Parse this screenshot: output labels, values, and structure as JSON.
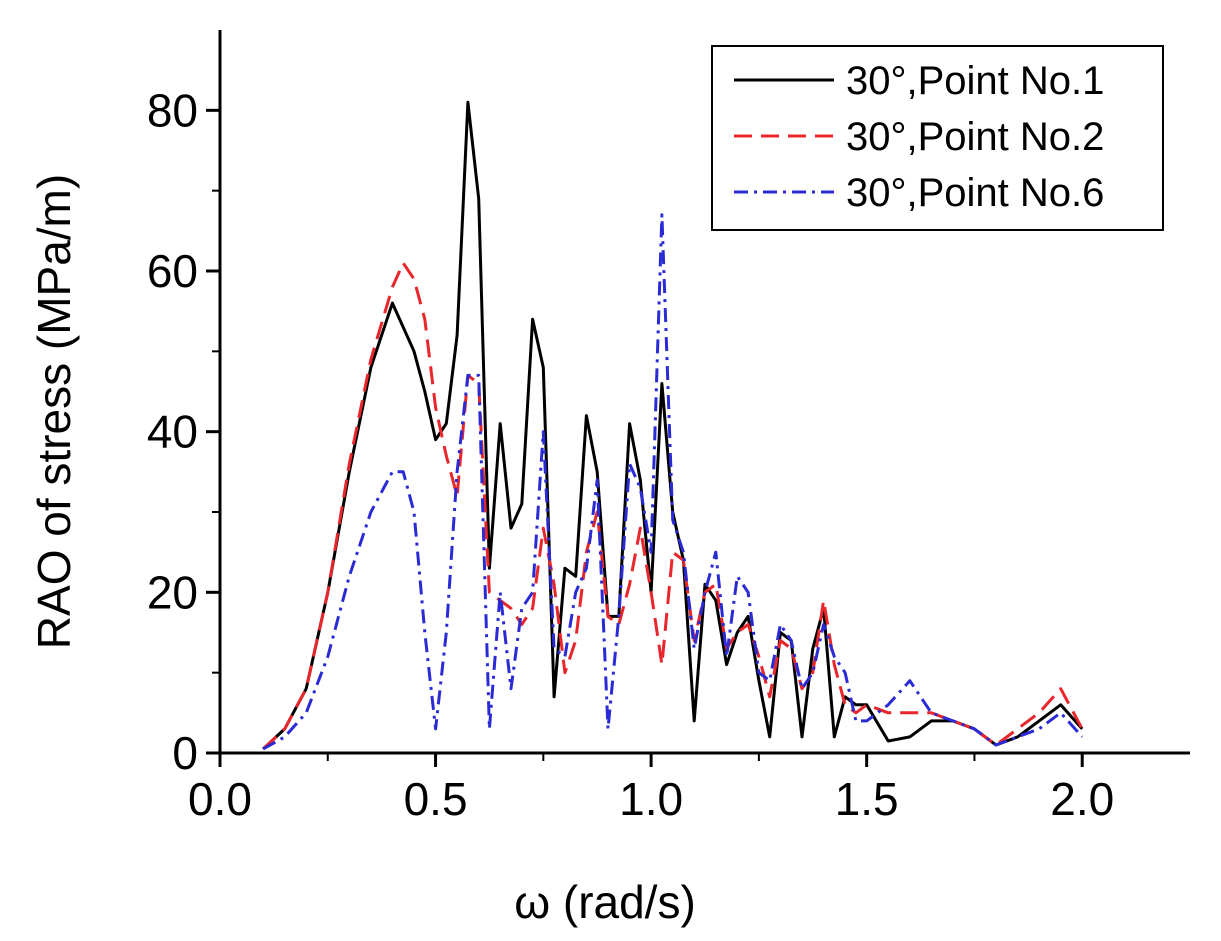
{
  "chart_data": {
    "type": "line",
    "title": "",
    "xlabel": "ω (rad/s)",
    "ylabel": "RAO of stress (MPa/m)",
    "xlim": [
      0.0,
      2.25
    ],
    "ylim": [
      0,
      90
    ],
    "xticks": [
      "0.0",
      "0.5",
      "1.0",
      "1.5",
      "2.0"
    ],
    "yticks": [
      "0",
      "20",
      "40",
      "60",
      "80"
    ],
    "grid": false,
    "legend_position": "top-right",
    "series": [
      {
        "name": "30°,Point No.1",
        "color": "#000000",
        "dash": "solid",
        "points": [
          [
            0.1,
            0.5
          ],
          [
            0.15,
            3
          ],
          [
            0.2,
            8
          ],
          [
            0.25,
            20
          ],
          [
            0.3,
            35
          ],
          [
            0.35,
            48
          ],
          [
            0.4,
            56
          ],
          [
            0.45,
            50
          ],
          [
            0.475,
            45
          ],
          [
            0.5,
            39
          ],
          [
            0.525,
            41
          ],
          [
            0.55,
            52
          ],
          [
            0.575,
            81
          ],
          [
            0.6,
            69
          ],
          [
            0.625,
            23
          ],
          [
            0.65,
            41
          ],
          [
            0.675,
            28
          ],
          [
            0.7,
            31
          ],
          [
            0.725,
            54
          ],
          [
            0.75,
            48
          ],
          [
            0.775,
            7
          ],
          [
            0.8,
            23
          ],
          [
            0.825,
            22
          ],
          [
            0.85,
            42
          ],
          [
            0.875,
            35
          ],
          [
            0.9,
            17
          ],
          [
            0.925,
            17
          ],
          [
            0.95,
            41
          ],
          [
            0.975,
            34
          ],
          [
            1.0,
            20
          ],
          [
            1.025,
            46
          ],
          [
            1.05,
            30
          ],
          [
            1.075,
            24
          ],
          [
            1.1,
            4
          ],
          [
            1.125,
            21
          ],
          [
            1.15,
            19
          ],
          [
            1.175,
            11
          ],
          [
            1.2,
            15
          ],
          [
            1.225,
            17
          ],
          [
            1.25,
            9
          ],
          [
            1.275,
            2
          ],
          [
            1.3,
            15
          ],
          [
            1.325,
            14
          ],
          [
            1.35,
            2
          ],
          [
            1.375,
            13
          ],
          [
            1.4,
            18
          ],
          [
            1.425,
            2
          ],
          [
            1.45,
            7
          ],
          [
            1.475,
            6
          ],
          [
            1.5,
            6
          ],
          [
            1.55,
            1.5
          ],
          [
            1.6,
            2
          ],
          [
            1.65,
            4
          ],
          [
            1.7,
            4
          ],
          [
            1.75,
            3
          ],
          [
            1.8,
            1
          ],
          [
            1.85,
            2
          ],
          [
            1.9,
            4
          ],
          [
            1.95,
            6
          ],
          [
            2.0,
            3
          ]
        ]
      },
      {
        "name": "30°,Point No.2",
        "color": "#e8262b",
        "dash": "dashed",
        "points": [
          [
            0.1,
            0.5
          ],
          [
            0.15,
            3
          ],
          [
            0.2,
            8
          ],
          [
            0.25,
            20
          ],
          [
            0.3,
            36
          ],
          [
            0.35,
            49
          ],
          [
            0.4,
            58
          ],
          [
            0.425,
            61
          ],
          [
            0.45,
            59
          ],
          [
            0.475,
            54
          ],
          [
            0.5,
            43
          ],
          [
            0.525,
            37
          ],
          [
            0.55,
            32
          ],
          [
            0.575,
            47
          ],
          [
            0.6,
            46
          ],
          [
            0.625,
            20
          ],
          [
            0.65,
            19
          ],
          [
            0.675,
            18
          ],
          [
            0.7,
            16
          ],
          [
            0.725,
            18
          ],
          [
            0.75,
            28
          ],
          [
            0.775,
            21
          ],
          [
            0.8,
            10
          ],
          [
            0.825,
            14
          ],
          [
            0.85,
            25
          ],
          [
            0.875,
            30
          ],
          [
            0.9,
            17
          ],
          [
            0.925,
            16
          ],
          [
            0.95,
            21
          ],
          [
            0.975,
            28
          ],
          [
            1.0,
            20
          ],
          [
            1.025,
            11
          ],
          [
            1.05,
            25
          ],
          [
            1.075,
            24
          ],
          [
            1.1,
            14
          ],
          [
            1.125,
            20
          ],
          [
            1.15,
            21
          ],
          [
            1.175,
            13
          ],
          [
            1.2,
            15
          ],
          [
            1.225,
            16
          ],
          [
            1.25,
            12
          ],
          [
            1.275,
            7
          ],
          [
            1.3,
            14
          ],
          [
            1.325,
            13
          ],
          [
            1.35,
            8
          ],
          [
            1.375,
            10
          ],
          [
            1.4,
            19
          ],
          [
            1.425,
            11
          ],
          [
            1.45,
            6
          ],
          [
            1.475,
            5
          ],
          [
            1.5,
            6
          ],
          [
            1.55,
            5
          ],
          [
            1.6,
            5
          ],
          [
            1.65,
            5
          ],
          [
            1.7,
            4
          ],
          [
            1.75,
            3
          ],
          [
            1.8,
            1
          ],
          [
            1.85,
            3
          ],
          [
            1.9,
            5
          ],
          [
            1.95,
            8
          ],
          [
            2.0,
            3
          ]
        ]
      },
      {
        "name": "30°,Point No.6",
        "color": "#2b2bd6",
        "dash": "dashdot",
        "points": [
          [
            0.1,
            0.5
          ],
          [
            0.15,
            2
          ],
          [
            0.2,
            5
          ],
          [
            0.25,
            12
          ],
          [
            0.3,
            22
          ],
          [
            0.35,
            30
          ],
          [
            0.4,
            35
          ],
          [
            0.425,
            35
          ],
          [
            0.45,
            30
          ],
          [
            0.475,
            15
          ],
          [
            0.5,
            3
          ],
          [
            0.525,
            15
          ],
          [
            0.55,
            35
          ],
          [
            0.575,
            47
          ],
          [
            0.6,
            47
          ],
          [
            0.625,
            3
          ],
          [
            0.65,
            20
          ],
          [
            0.675,
            8
          ],
          [
            0.7,
            18
          ],
          [
            0.725,
            20
          ],
          [
            0.75,
            40
          ],
          [
            0.775,
            13
          ],
          [
            0.8,
            12
          ],
          [
            0.825,
            20
          ],
          [
            0.85,
            23
          ],
          [
            0.875,
            34
          ],
          [
            0.9,
            3
          ],
          [
            0.925,
            17
          ],
          [
            0.95,
            36
          ],
          [
            0.975,
            33
          ],
          [
            1.0,
            25
          ],
          [
            1.025,
            67
          ],
          [
            1.05,
            29
          ],
          [
            1.075,
            25
          ],
          [
            1.1,
            13
          ],
          [
            1.125,
            20
          ],
          [
            1.15,
            25
          ],
          [
            1.175,
            12
          ],
          [
            1.2,
            22
          ],
          [
            1.225,
            20
          ],
          [
            1.25,
            10
          ],
          [
            1.275,
            9
          ],
          [
            1.3,
            16
          ],
          [
            1.325,
            14
          ],
          [
            1.35,
            8
          ],
          [
            1.375,
            10
          ],
          [
            1.4,
            16
          ],
          [
            1.425,
            12
          ],
          [
            1.45,
            10
          ],
          [
            1.475,
            4
          ],
          [
            1.5,
            4
          ],
          [
            1.55,
            6
          ],
          [
            1.6,
            9
          ],
          [
            1.65,
            5
          ],
          [
            1.7,
            4
          ],
          [
            1.75,
            3
          ],
          [
            1.8,
            1
          ],
          [
            1.85,
            2
          ],
          [
            1.9,
            3
          ],
          [
            1.95,
            5
          ],
          [
            2.0,
            2
          ]
        ]
      }
    ]
  }
}
